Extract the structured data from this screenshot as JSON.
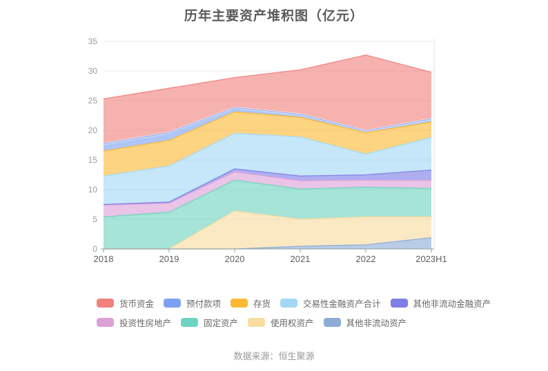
{
  "page": {
    "title": "历年主要资产堆积图（亿元）",
    "source_note": "数据来源：恒生聚源"
  },
  "chart_data": {
    "type": "area",
    "stacked": true,
    "title": "历年主要资产堆积图（亿元）",
    "x": [
      "2018",
      "2019",
      "2020",
      "2021",
      "2022",
      "2023H1"
    ],
    "xlabel": "",
    "ylabel": "",
    "ylim": [
      0,
      35
    ],
    "yticks": [
      0,
      5,
      10,
      15,
      20,
      25,
      30,
      35
    ],
    "grid": true,
    "legend_position": "bottom",
    "legend_rows": [
      [
        0,
        1,
        2,
        3,
        4
      ],
      [
        5,
        6,
        7,
        8
      ]
    ],
    "stacking_note": "series listed in legend order = top of stack first; bottom of stack is the last series",
    "series": [
      {
        "name": "货币资金",
        "color": "#F0827E",
        "values": [
          7.6,
          7.5,
          5.1,
          7.5,
          12.8,
          7.9
        ]
      },
      {
        "name": "预付款项",
        "color": "#7DA1F2",
        "values": [
          1.2,
          1.3,
          0.7,
          0.5,
          0.3,
          0.5
        ]
      },
      {
        "name": "存货",
        "color": "#FBB933",
        "values": [
          4.2,
          4.3,
          3.6,
          3.3,
          3.6,
          2.6
        ]
      },
      {
        "name": "交易性金融资产合计",
        "color": "#A2D8F6",
        "values": [
          4.8,
          6.1,
          6.0,
          6.6,
          3.5,
          5.5
        ]
      },
      {
        "name": "其他非流动金融资产",
        "color": "#7E7EE6",
        "values": [
          0.1,
          0.2,
          0.5,
          0.8,
          0.9,
          1.75
        ]
      },
      {
        "name": "投资性房地产",
        "color": "#DCA0D8",
        "values": [
          2.0,
          1.5,
          1.4,
          1.4,
          1.2,
          1.35
        ]
      },
      {
        "name": "固定资产",
        "color": "#6ED3BF",
        "values": [
          5.4,
          6.2,
          5.2,
          5.1,
          5.0,
          4.8
        ]
      },
      {
        "name": "使用权资产",
        "color": "#F9DCA0",
        "values": [
          0,
          0,
          6.4,
          4.55,
          4.7,
          3.5
        ]
      },
      {
        "name": "其他非流动资产",
        "color": "#8CACD6",
        "values": [
          0,
          0,
          0,
          0.45,
          0.7,
          1.9
        ]
      }
    ],
    "stack_totals": [
      25.3,
      27.1,
      28.9,
      30.2,
      32.7,
      29.8
    ],
    "white_separator_below_series": "货币资金",
    "colors": {
      "grid_line": "#E4E8F4",
      "axis_line": "#999999",
      "y_tick_label": "#9A9A9A",
      "x_tick_label": "#5E5E5E",
      "title_text": "#595959",
      "legend_text": "#666666",
      "source_text": "#999999",
      "right_border": "#DDE0EA"
    }
  }
}
